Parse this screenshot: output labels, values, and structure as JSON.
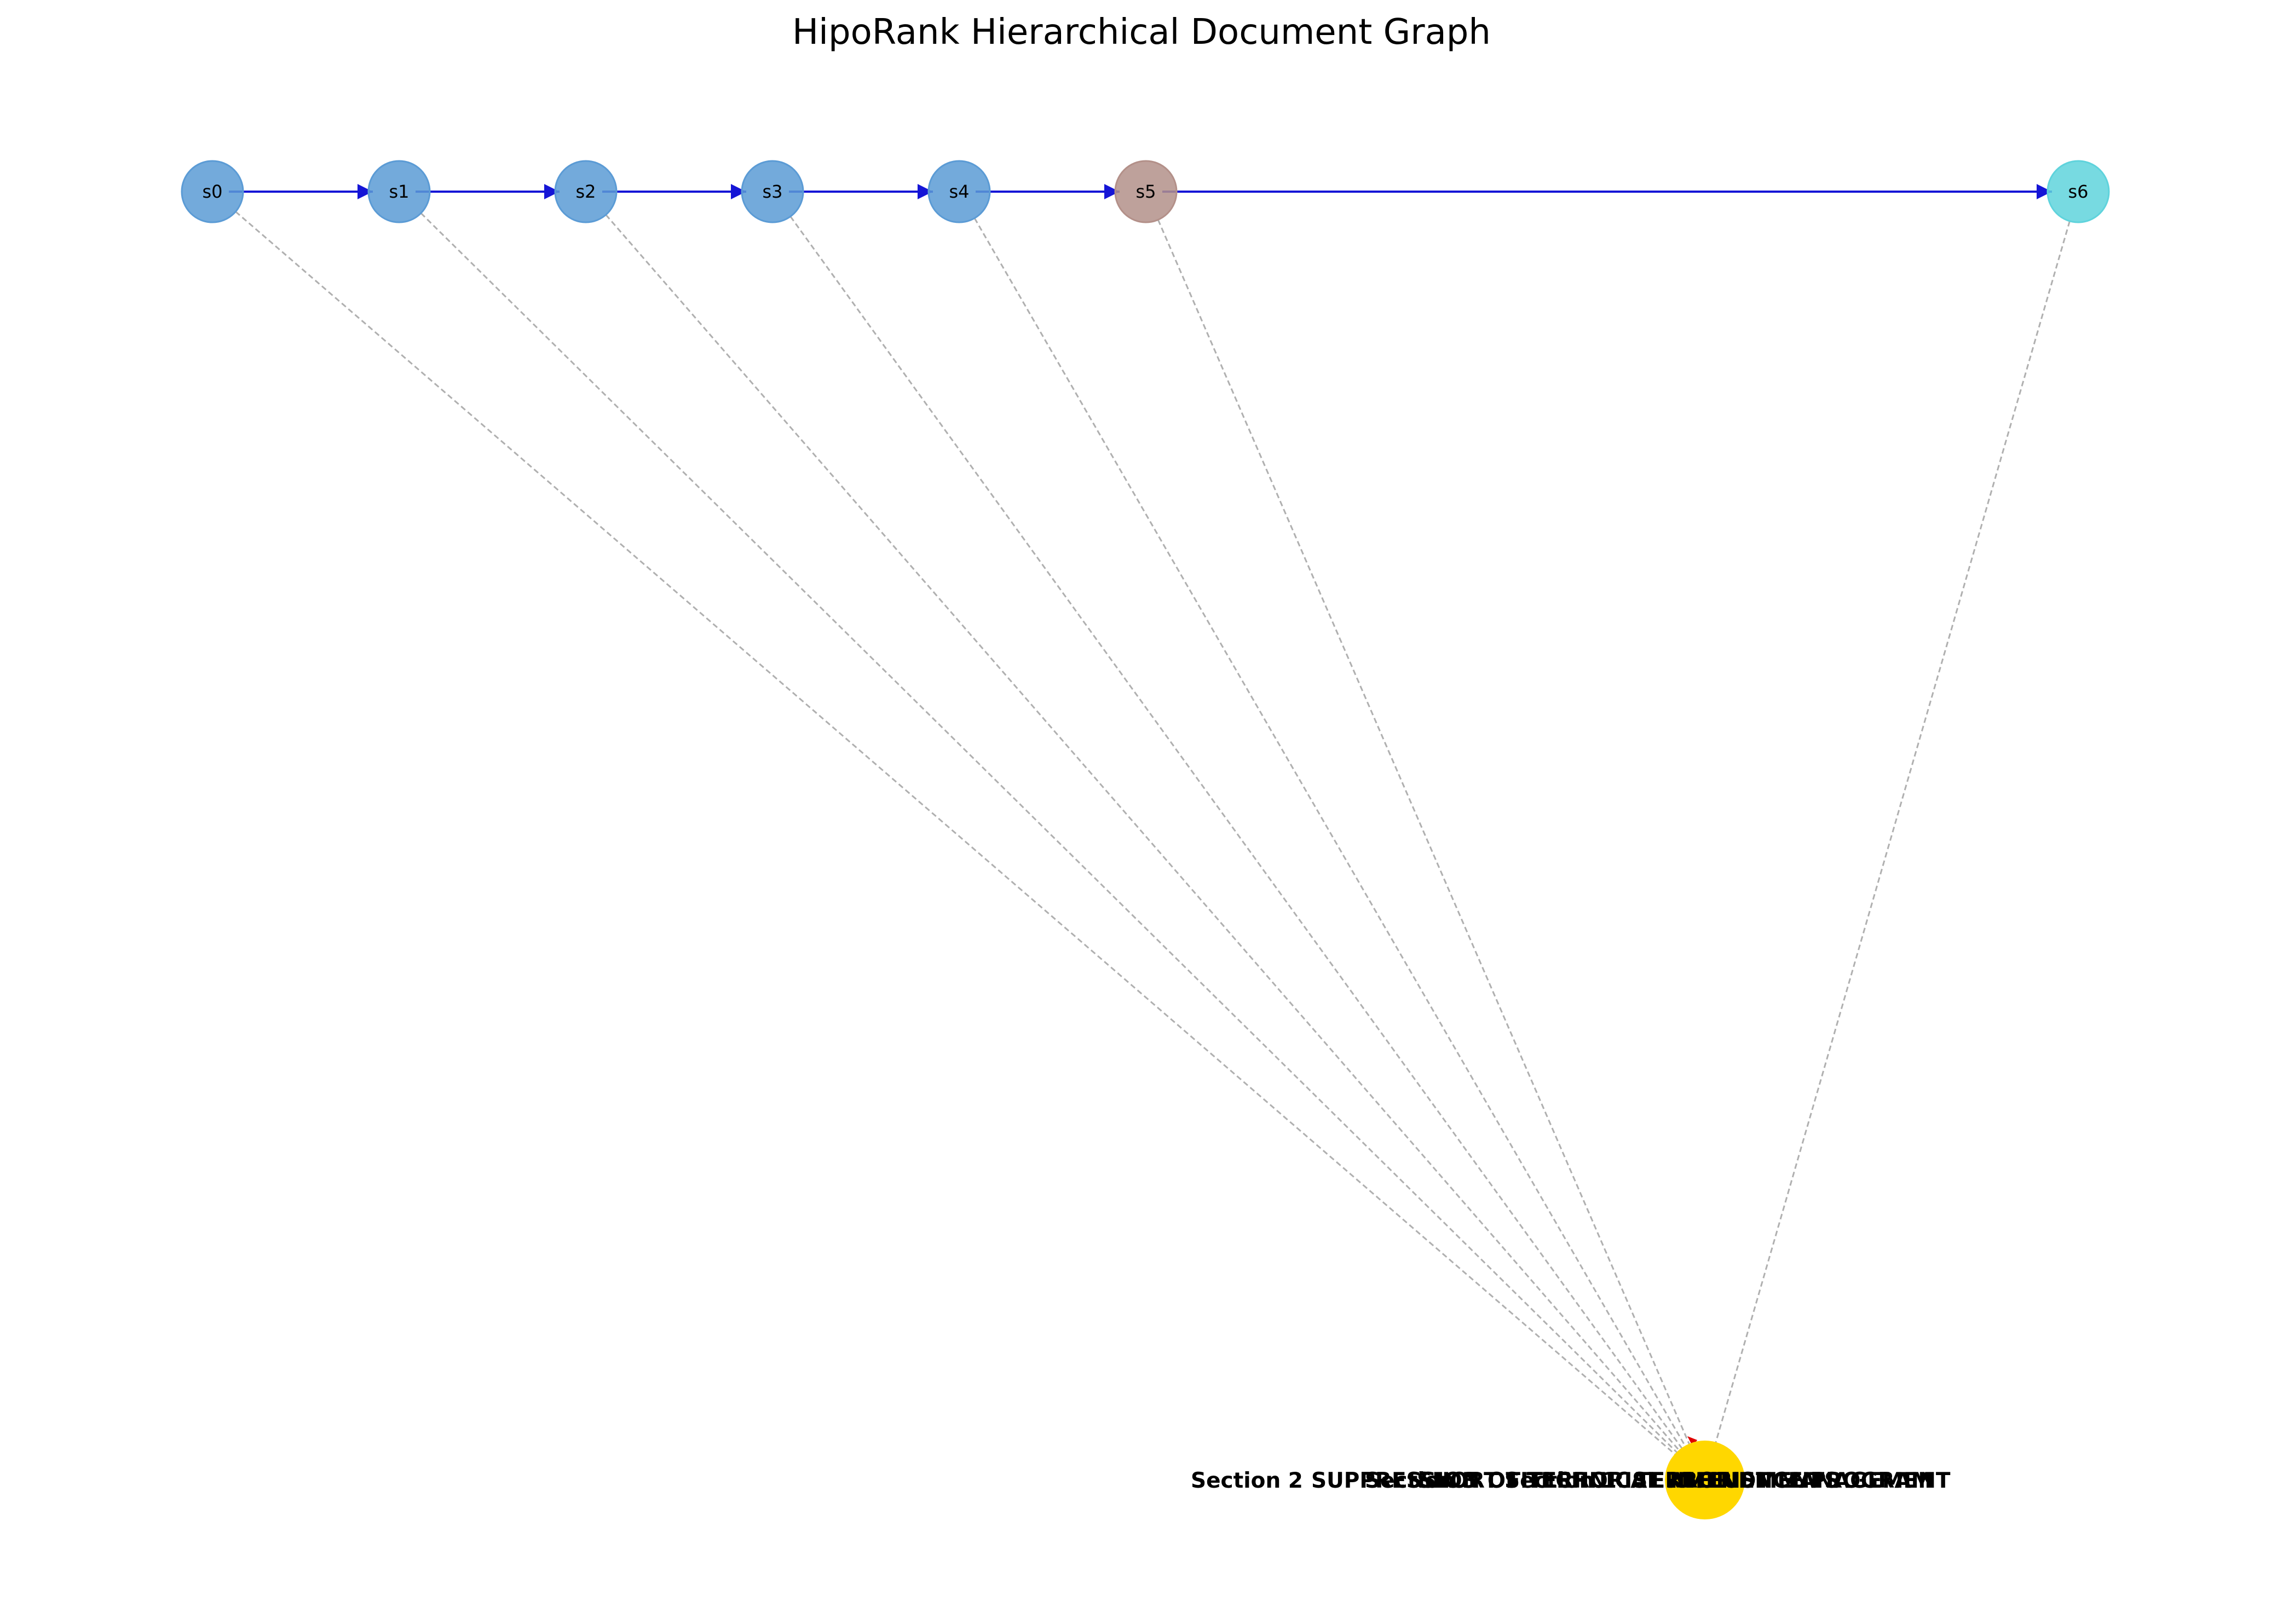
{
  "title": "HipoRank Hierarchical Document Graph",
  "colors": {
    "sentence_default": "#5b9bd5",
    "sentence_s5": "#b39089",
    "sentence_s6": "#5fd3dc",
    "section_node": "#ffd700",
    "sequence_edge": "#1515d6",
    "hierarchy_edge": "#b0b0b0",
    "section_arrow": "#e00000"
  },
  "sentence_nodes": [
    {
      "id": "s0",
      "label": "s0",
      "color": "#5b9bd5"
    },
    {
      "id": "s1",
      "label": "s1",
      "color": "#5b9bd5"
    },
    {
      "id": "s2",
      "label": "s2",
      "color": "#5b9bd5"
    },
    {
      "id": "s3",
      "label": "s3",
      "color": "#5b9bd5"
    },
    {
      "id": "s4",
      "label": "s4",
      "color": "#5b9bd5"
    },
    {
      "id": "s5",
      "label": "s5",
      "color": "#b39089"
    },
    {
      "id": "s6",
      "label": "s6",
      "color": "#5fd3dc"
    }
  ],
  "sequence_edges": [
    [
      "s0",
      "s1"
    ],
    [
      "s1",
      "s2"
    ],
    [
      "s2",
      "s3"
    ],
    [
      "s3",
      "s4"
    ],
    [
      "s4",
      "s5"
    ],
    [
      "s5",
      "s6"
    ]
  ],
  "hierarchy_edges": [
    "s0",
    "s1",
    "s2",
    "s3",
    "s4",
    "s5",
    "s6"
  ],
  "section_node": {
    "id": "section",
    "labels": [
      "Section 2",
      "SUPPRESSION OF TERRORIST INFLUENCE PROGRAM",
      "Section 3",
      "SHORT TITLE",
      "Section 1",
      "TECHNICAL AMENDMENTS",
      "TERRORIST MANAGEMENT"
    ]
  }
}
